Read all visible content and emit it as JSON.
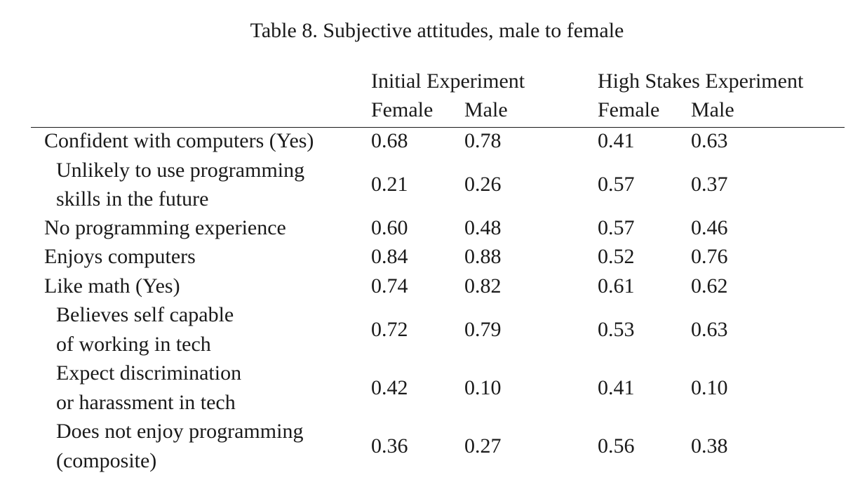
{
  "table": {
    "title": "Table 8. Subjective attitudes, male to female",
    "groups": [
      "Initial Experiment",
      "High Stakes Experiment"
    ],
    "subheaders": [
      "Female",
      "Male",
      "Female",
      "Male"
    ],
    "rows": [
      {
        "label": [
          "Confident with computers (Yes)"
        ],
        "values": [
          "0.68",
          "0.78",
          "0.41",
          "0.63"
        ]
      },
      {
        "label": [
          "Unlikely to use programming",
          "skills in the future"
        ],
        "values": [
          "0.21",
          "0.26",
          "0.57",
          "0.37"
        ]
      },
      {
        "label": [
          "No programming experience"
        ],
        "values": [
          "0.60",
          "0.48",
          "0.57",
          "0.46"
        ]
      },
      {
        "label": [
          "Enjoys computers"
        ],
        "values": [
          "0.84",
          "0.88",
          "0.52",
          "0.76"
        ]
      },
      {
        "label": [
          "Like math (Yes)"
        ],
        "values": [
          "0.74",
          "0.82",
          "0.61",
          "0.62"
        ]
      },
      {
        "label": [
          "Believes self capable",
          "of working in tech"
        ],
        "values": [
          "0.72",
          "0.79",
          "0.53",
          "0.63"
        ]
      },
      {
        "label": [
          "Expect discrimination",
          "or harassment in tech"
        ],
        "values": [
          "0.42",
          "0.10",
          "0.41",
          "0.10"
        ]
      },
      {
        "label": [
          "Does not enjoy programming",
          "(composite)"
        ],
        "values": [
          "0.36",
          "0.27",
          "0.56",
          "0.38"
        ]
      }
    ]
  }
}
